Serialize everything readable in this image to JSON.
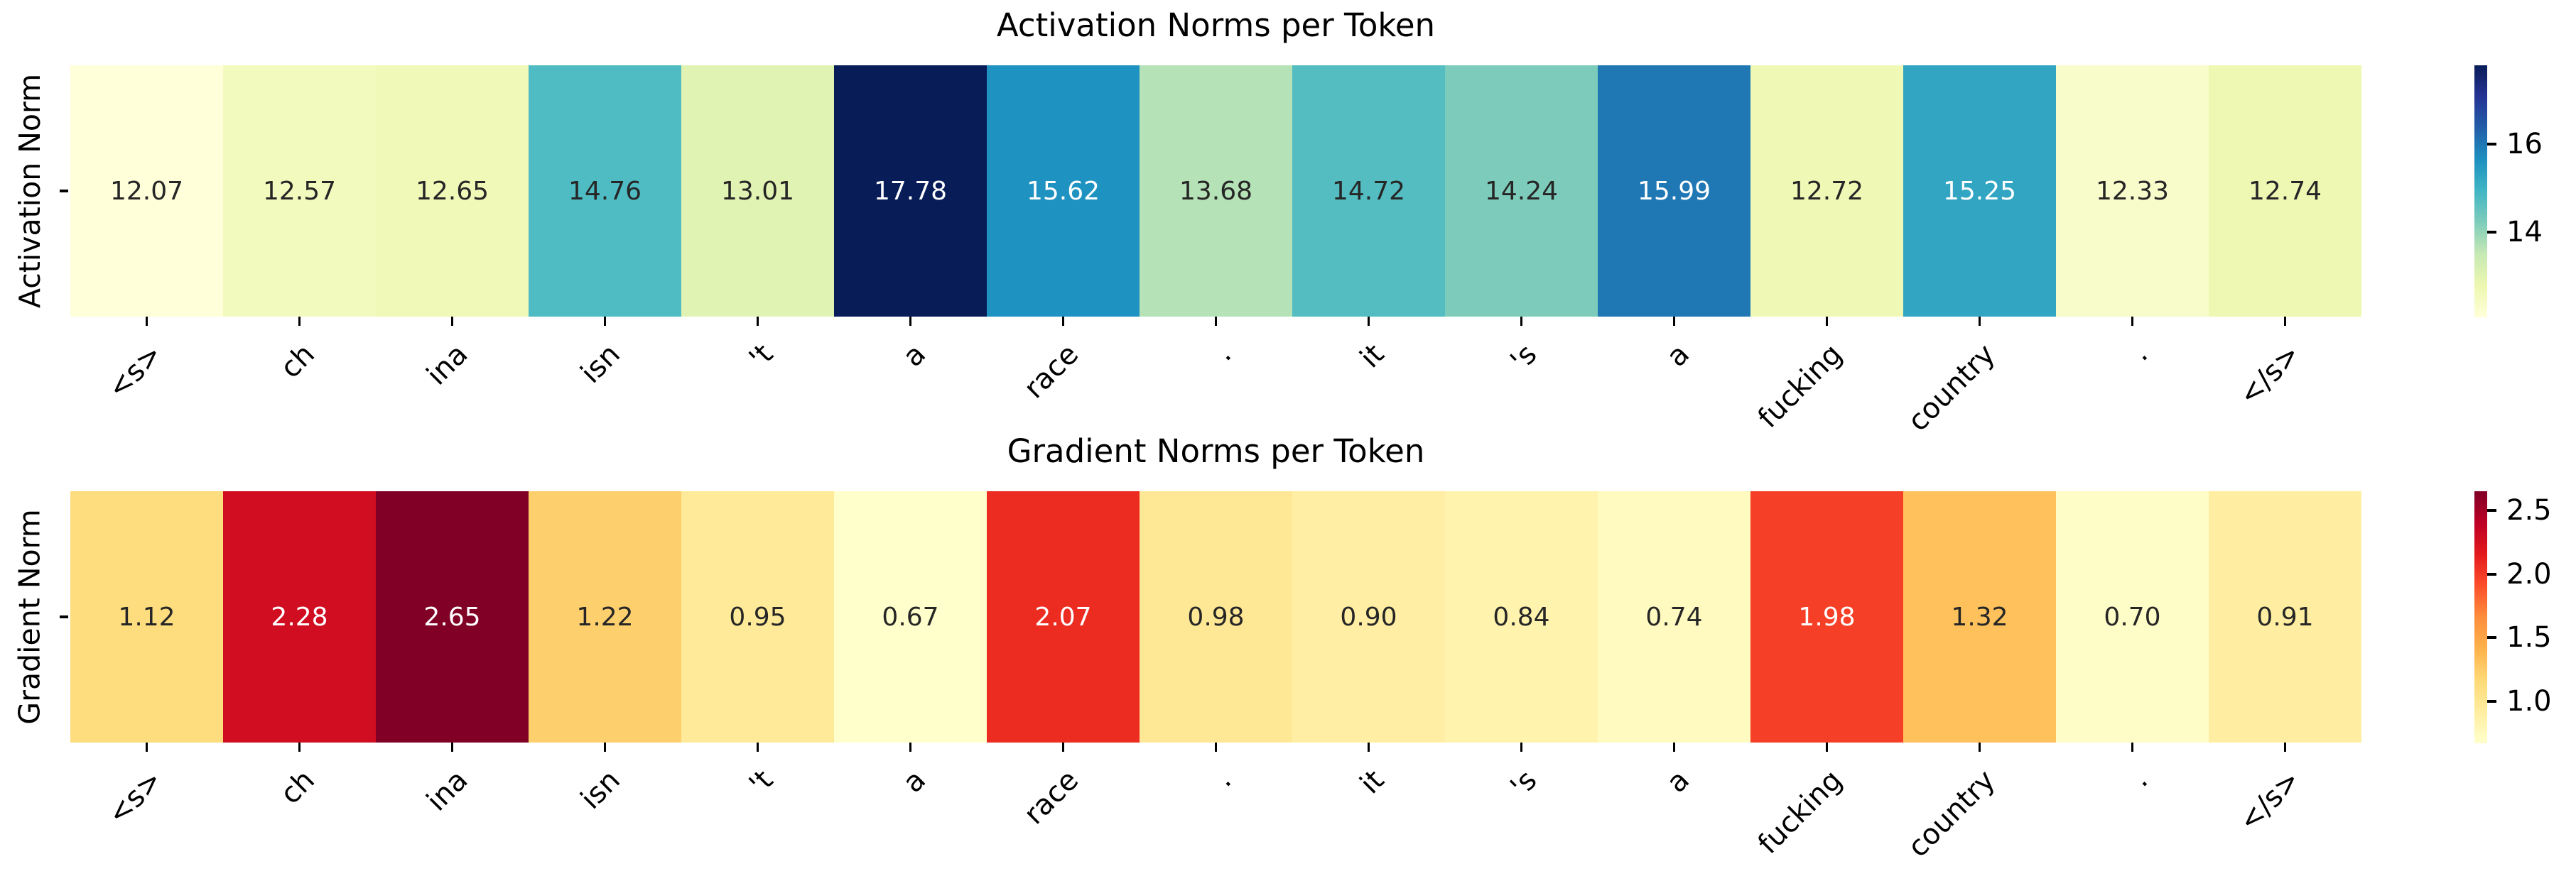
{
  "figure": {
    "background": "#ffffff"
  },
  "chart_data": [
    {
      "type": "heatmap",
      "title": "Activation Norms per Token",
      "ylabel": "Activation Norm",
      "xlabel": "",
      "categories": [
        "<s>",
        "ch",
        "ina",
        "isn",
        "'t",
        "a",
        "race",
        ".",
        "it",
        "'s",
        "a",
        "fucking",
        "country",
        ".",
        "</s>"
      ],
      "values": [
        12.07,
        12.57,
        12.65,
        14.76,
        13.01,
        17.78,
        15.62,
        13.68,
        14.72,
        14.24,
        15.99,
        12.72,
        15.25,
        12.33,
        12.74
      ],
      "vmin": 12.07,
      "vmax": 17.78,
      "colormap": "YlGnBu",
      "legend_position": "right",
      "grid": false,
      "colorbar_ticks": [
        {
          "label": "16",
          "value": 16
        },
        {
          "label": "14",
          "value": 14
        }
      ]
    },
    {
      "type": "heatmap",
      "title": "Gradient Norms per Token",
      "ylabel": "Gradient Norm",
      "xlabel": "",
      "categories": [
        "<s>",
        "ch",
        "ina",
        "isn",
        "'t",
        "a",
        "race",
        ".",
        "it",
        "'s",
        "a",
        "fucking",
        "country",
        ".",
        "</s>"
      ],
      "values": [
        1.12,
        2.28,
        2.65,
        1.22,
        0.95,
        0.67,
        2.07,
        0.98,
        0.9,
        0.84,
        0.74,
        1.98,
        1.32,
        0.7,
        0.91
      ],
      "vmin": 0.67,
      "vmax": 2.65,
      "colormap": "YlOrRd",
      "legend_position": "right",
      "grid": false,
      "colorbar_ticks": [
        {
          "label": "2.5",
          "value": 2.5
        },
        {
          "label": "2.0",
          "value": 2.0
        },
        {
          "label": "1.5",
          "value": 1.5
        },
        {
          "label": "1.0",
          "value": 1.0
        }
      ]
    }
  ],
  "colormaps": {
    "YlGnBu": [
      "#ffffd9",
      "#edf8b1",
      "#c7e9b4",
      "#7fcdbb",
      "#41b6c4",
      "#1d91c0",
      "#225ea8",
      "#253494",
      "#081d58"
    ],
    "YlOrRd": [
      "#ffffcc",
      "#ffeda0",
      "#fed976",
      "#feb24c",
      "#fd8d3c",
      "#fc4e2a",
      "#e31a1c",
      "#bd0026",
      "#800026"
    ]
  },
  "text_colors": {
    "annotation_dark": "#262626",
    "annotation_light": "#ffffff",
    "axis": "#000000"
  }
}
